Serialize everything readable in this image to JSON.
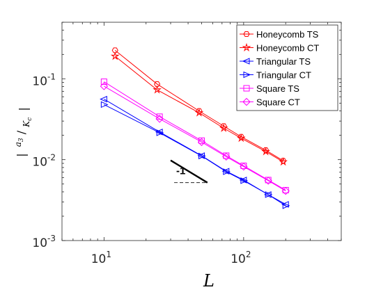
{
  "chart_data": {
    "type": "line",
    "xscale": "log",
    "yscale": "log",
    "xlim": [
      5,
      500
    ],
    "ylim": [
      0.001,
      0.5
    ],
    "xlabel": "L",
    "ylabel": "|a3/Kc|",
    "x_ticks": [
      {
        "base": "10",
        "exp": "1"
      },
      {
        "base": "10",
        "exp": "2"
      }
    ],
    "y_ticks": [
      {
        "base": "10",
        "exp": "-3"
      },
      {
        "base": "10",
        "exp": "-2"
      },
      {
        "base": "10",
        "exp": "-1"
      }
    ],
    "legend_position": "top-right",
    "series": [
      {
        "name": "Honeycomb TS",
        "color": "#ff0000",
        "marker": "hexagon",
        "x": [
          12,
          24,
          48,
          72,
          96,
          144,
          192
        ],
        "y": [
          0.225,
          0.086,
          0.04,
          0.026,
          0.0192,
          0.0131,
          0.0097
        ]
      },
      {
        "name": "Honeycomb CT",
        "color": "#ff0000",
        "marker": "star",
        "x": [
          12,
          24,
          48,
          72,
          96,
          144,
          192
        ],
        "y": [
          0.19,
          0.073,
          0.038,
          0.0245,
          0.0184,
          0.0126,
          0.0094
        ]
      },
      {
        "name": "Triangular TS",
        "color": "#0000ff",
        "marker": "triangle-left",
        "x": [
          10,
          25,
          50,
          75,
          100,
          150,
          200
        ],
        "y": [
          0.056,
          0.022,
          0.0112,
          0.0072,
          0.0056,
          0.0037,
          0.0028
        ]
      },
      {
        "name": "Triangular CT",
        "color": "#0000ff",
        "marker": "triangle-right",
        "x": [
          10,
          25,
          50,
          75,
          100,
          150,
          200
        ],
        "y": [
          0.048,
          0.0215,
          0.0111,
          0.0071,
          0.0055,
          0.0037,
          0.0027
        ]
      },
      {
        "name": "Square TS",
        "color": "#ff00ff",
        "marker": "square",
        "x": [
          10,
          25,
          50,
          75,
          100,
          150,
          200
        ],
        "y": [
          0.092,
          0.034,
          0.0172,
          0.0112,
          0.0084,
          0.0056,
          0.0042
        ]
      },
      {
        "name": "Square CT",
        "color": "#ff00ff",
        "marker": "diamond",
        "x": [
          10,
          25,
          50,
          75,
          100,
          150,
          200
        ],
        "y": [
          0.081,
          0.032,
          0.0165,
          0.0109,
          0.0082,
          0.0055,
          0.0041
        ]
      }
    ],
    "annotations": [
      {
        "text": "-1",
        "type": "slope-triangle",
        "slope": -1,
        "x": [
          30,
          55
        ],
        "y": [
          0.0098,
          0.0052
        ]
      }
    ]
  }
}
